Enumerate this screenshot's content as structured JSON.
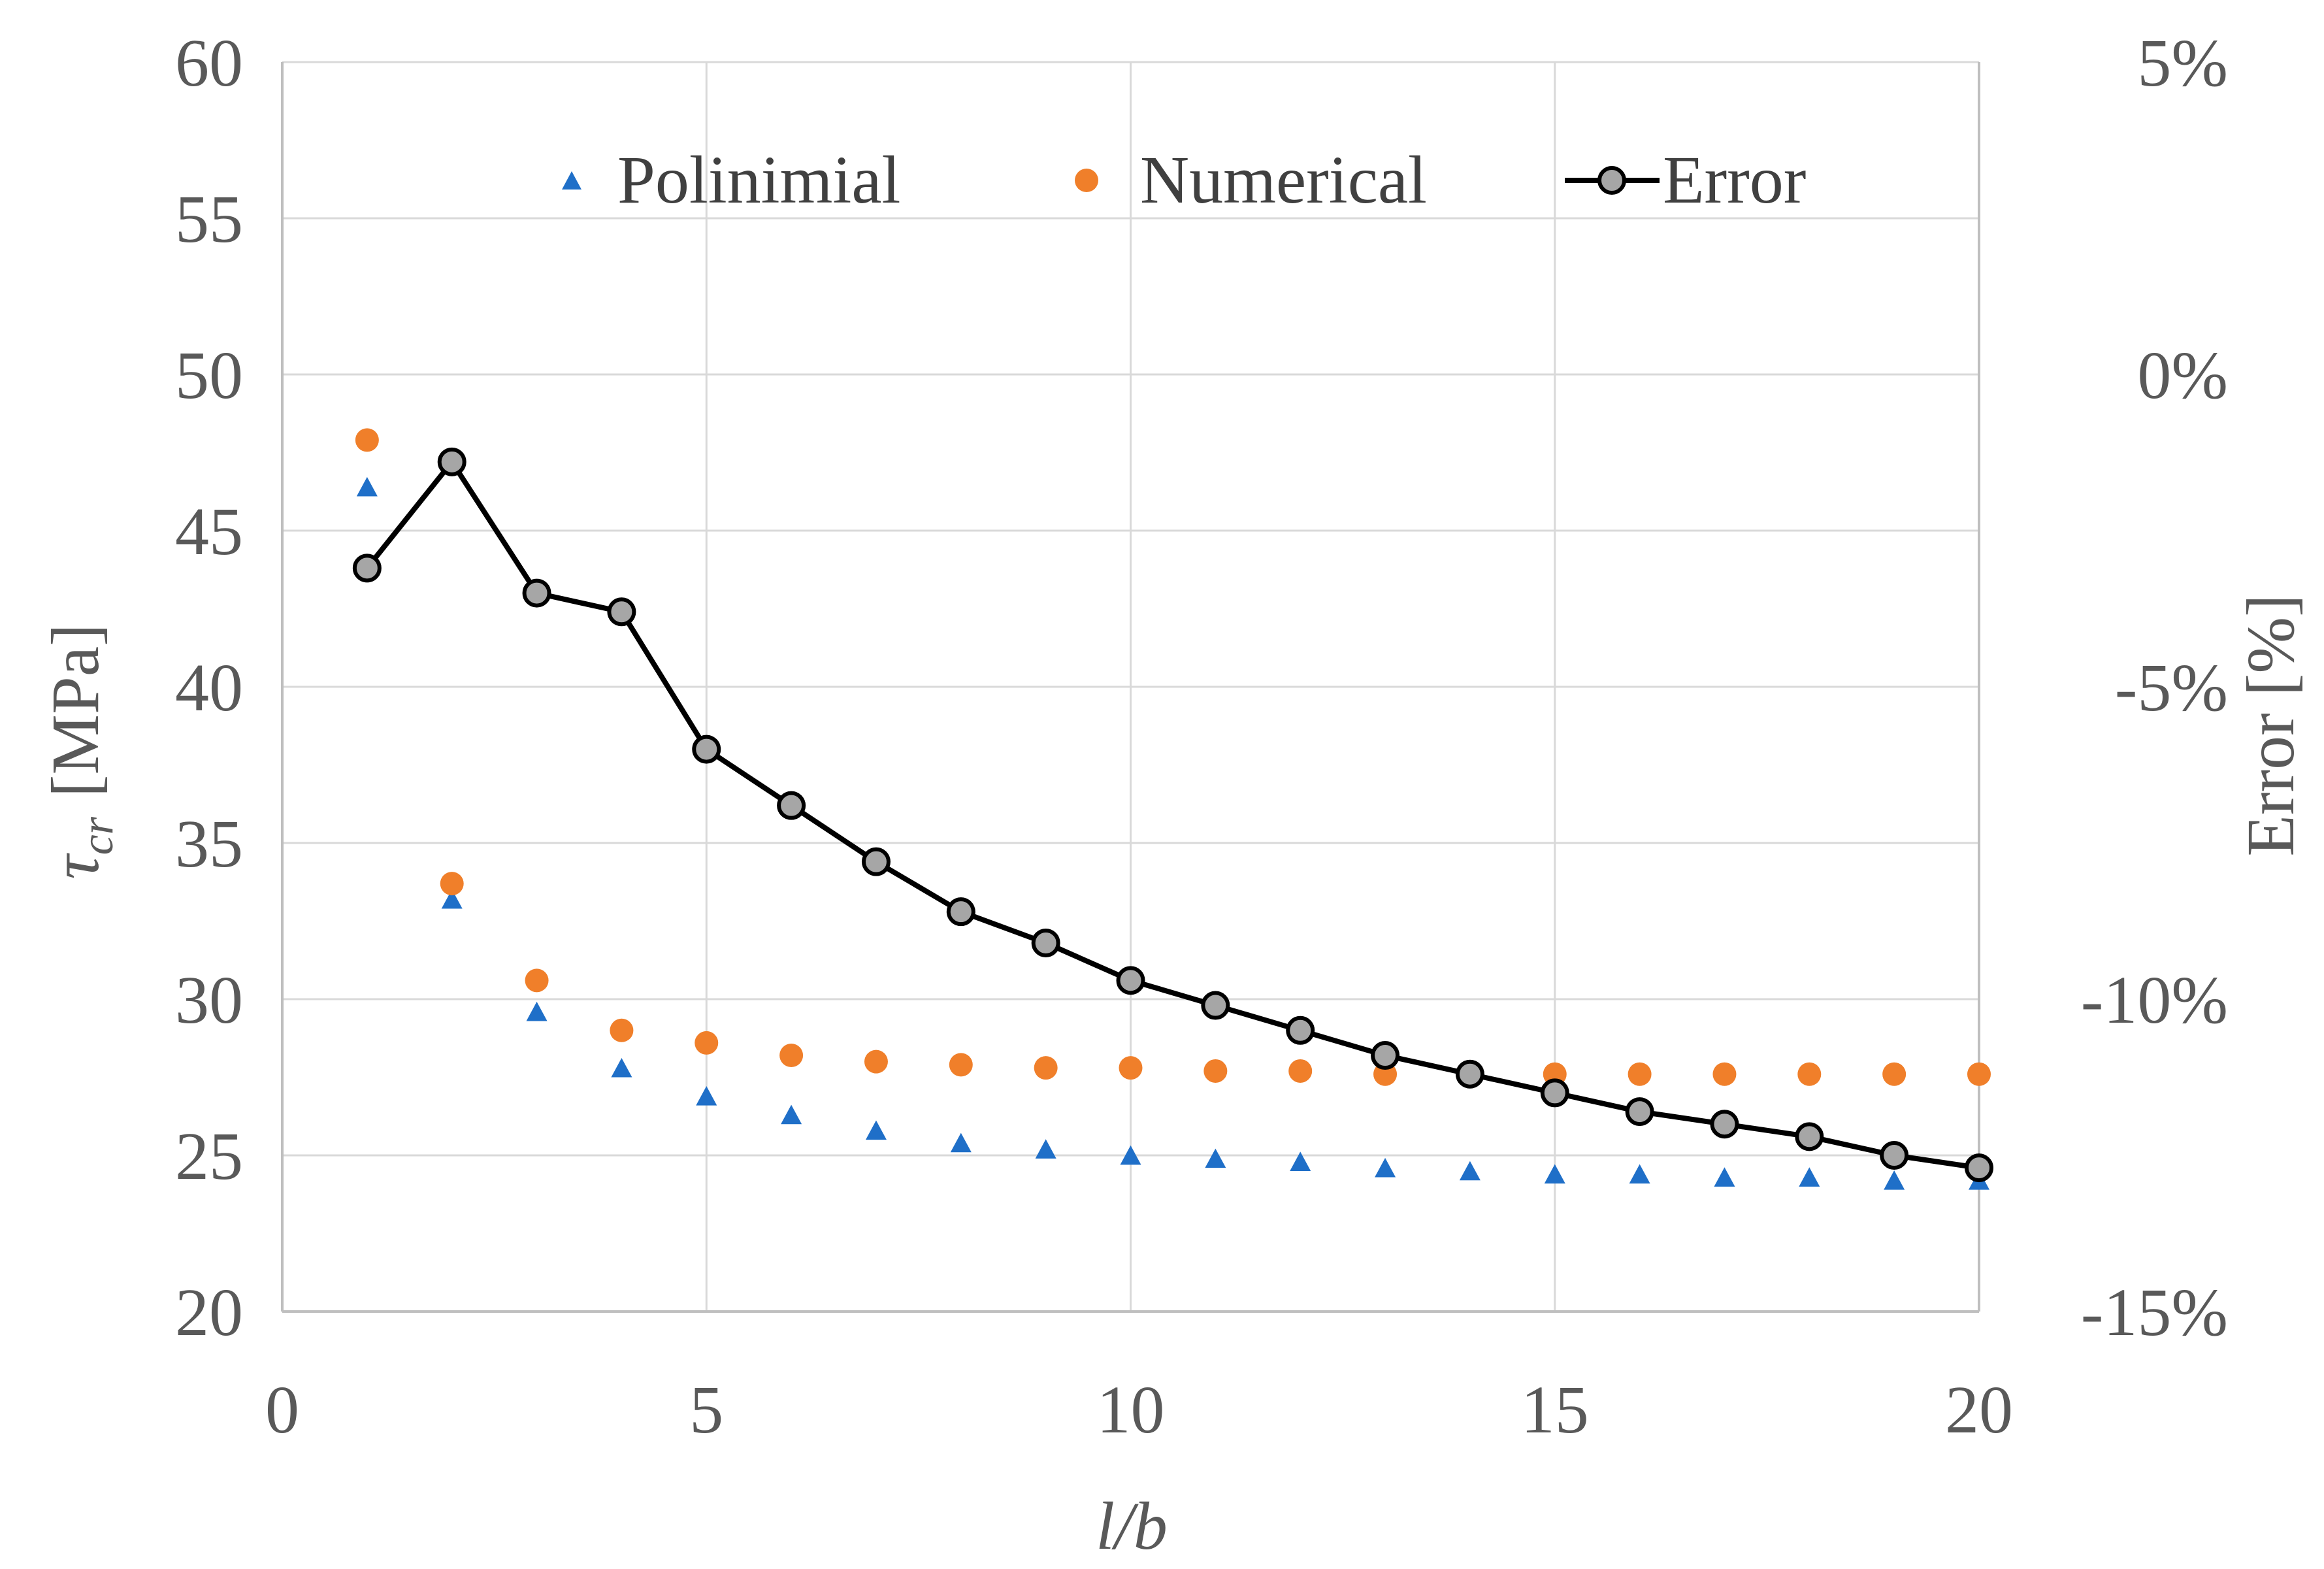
{
  "chart_data": {
    "type": "scatter",
    "x": [
      1,
      2,
      3,
      4,
      5,
      6,
      7,
      8,
      9,
      10,
      11,
      12,
      13,
      14,
      15,
      16,
      17,
      18,
      19,
      20
    ],
    "series": [
      {
        "name": "Polinimial",
        "axis": "left",
        "marker": "triangle",
        "color": "#1f6fc8",
        "values": [
          46.4,
          33.2,
          29.6,
          27.8,
          26.9,
          26.3,
          25.8,
          25.4,
          25.2,
          25.0,
          24.9,
          24.8,
          24.6,
          24.5,
          24.4,
          24.4,
          24.3,
          24.3,
          24.2,
          24.2
        ]
      },
      {
        "name": "Numerical",
        "axis": "left",
        "marker": "circle",
        "color": "#f07f2a",
        "values": [
          47.9,
          33.7,
          30.6,
          29.0,
          28.6,
          28.2,
          28.0,
          27.9,
          27.8,
          27.8,
          27.7,
          27.7,
          27.6,
          27.6,
          27.6,
          27.6,
          27.6,
          27.6,
          27.6,
          27.6
        ]
      },
      {
        "name": "Error",
        "axis": "right",
        "marker": "circle-line",
        "color": "#000000",
        "marker_fill": "#a6a6a6",
        "values": [
          -3.1,
          -1.4,
          -3.5,
          -3.8,
          -6.0,
          -6.9,
          -7.8,
          -8.6,
          -9.1,
          -9.7,
          -10.1,
          -10.5,
          -10.9,
          -11.2,
          -11.5,
          -11.8,
          -12.0,
          -12.2,
          -12.5,
          -12.7
        ]
      }
    ],
    "xlabel": "l/b",
    "ylabel": "τcr [MPa]",
    "ylabel_symbol": "τ",
    "ylabel_subscript": "cr",
    "ylabel_unit": "[MPa]",
    "y2label": "Error [%]",
    "xlim": [
      0,
      20
    ],
    "ylim": [
      20,
      60
    ],
    "y2lim": [
      -15,
      5
    ],
    "xticks": [
      "0",
      "5",
      "10",
      "15",
      "20"
    ],
    "yticks": [
      "20",
      "25",
      "30",
      "35",
      "40",
      "45",
      "50",
      "55",
      "60"
    ],
    "y2ticks": [
      "-15%",
      "-10%",
      "-5%",
      "0%",
      "5%"
    ],
    "grid": true,
    "legend_position": "top"
  }
}
